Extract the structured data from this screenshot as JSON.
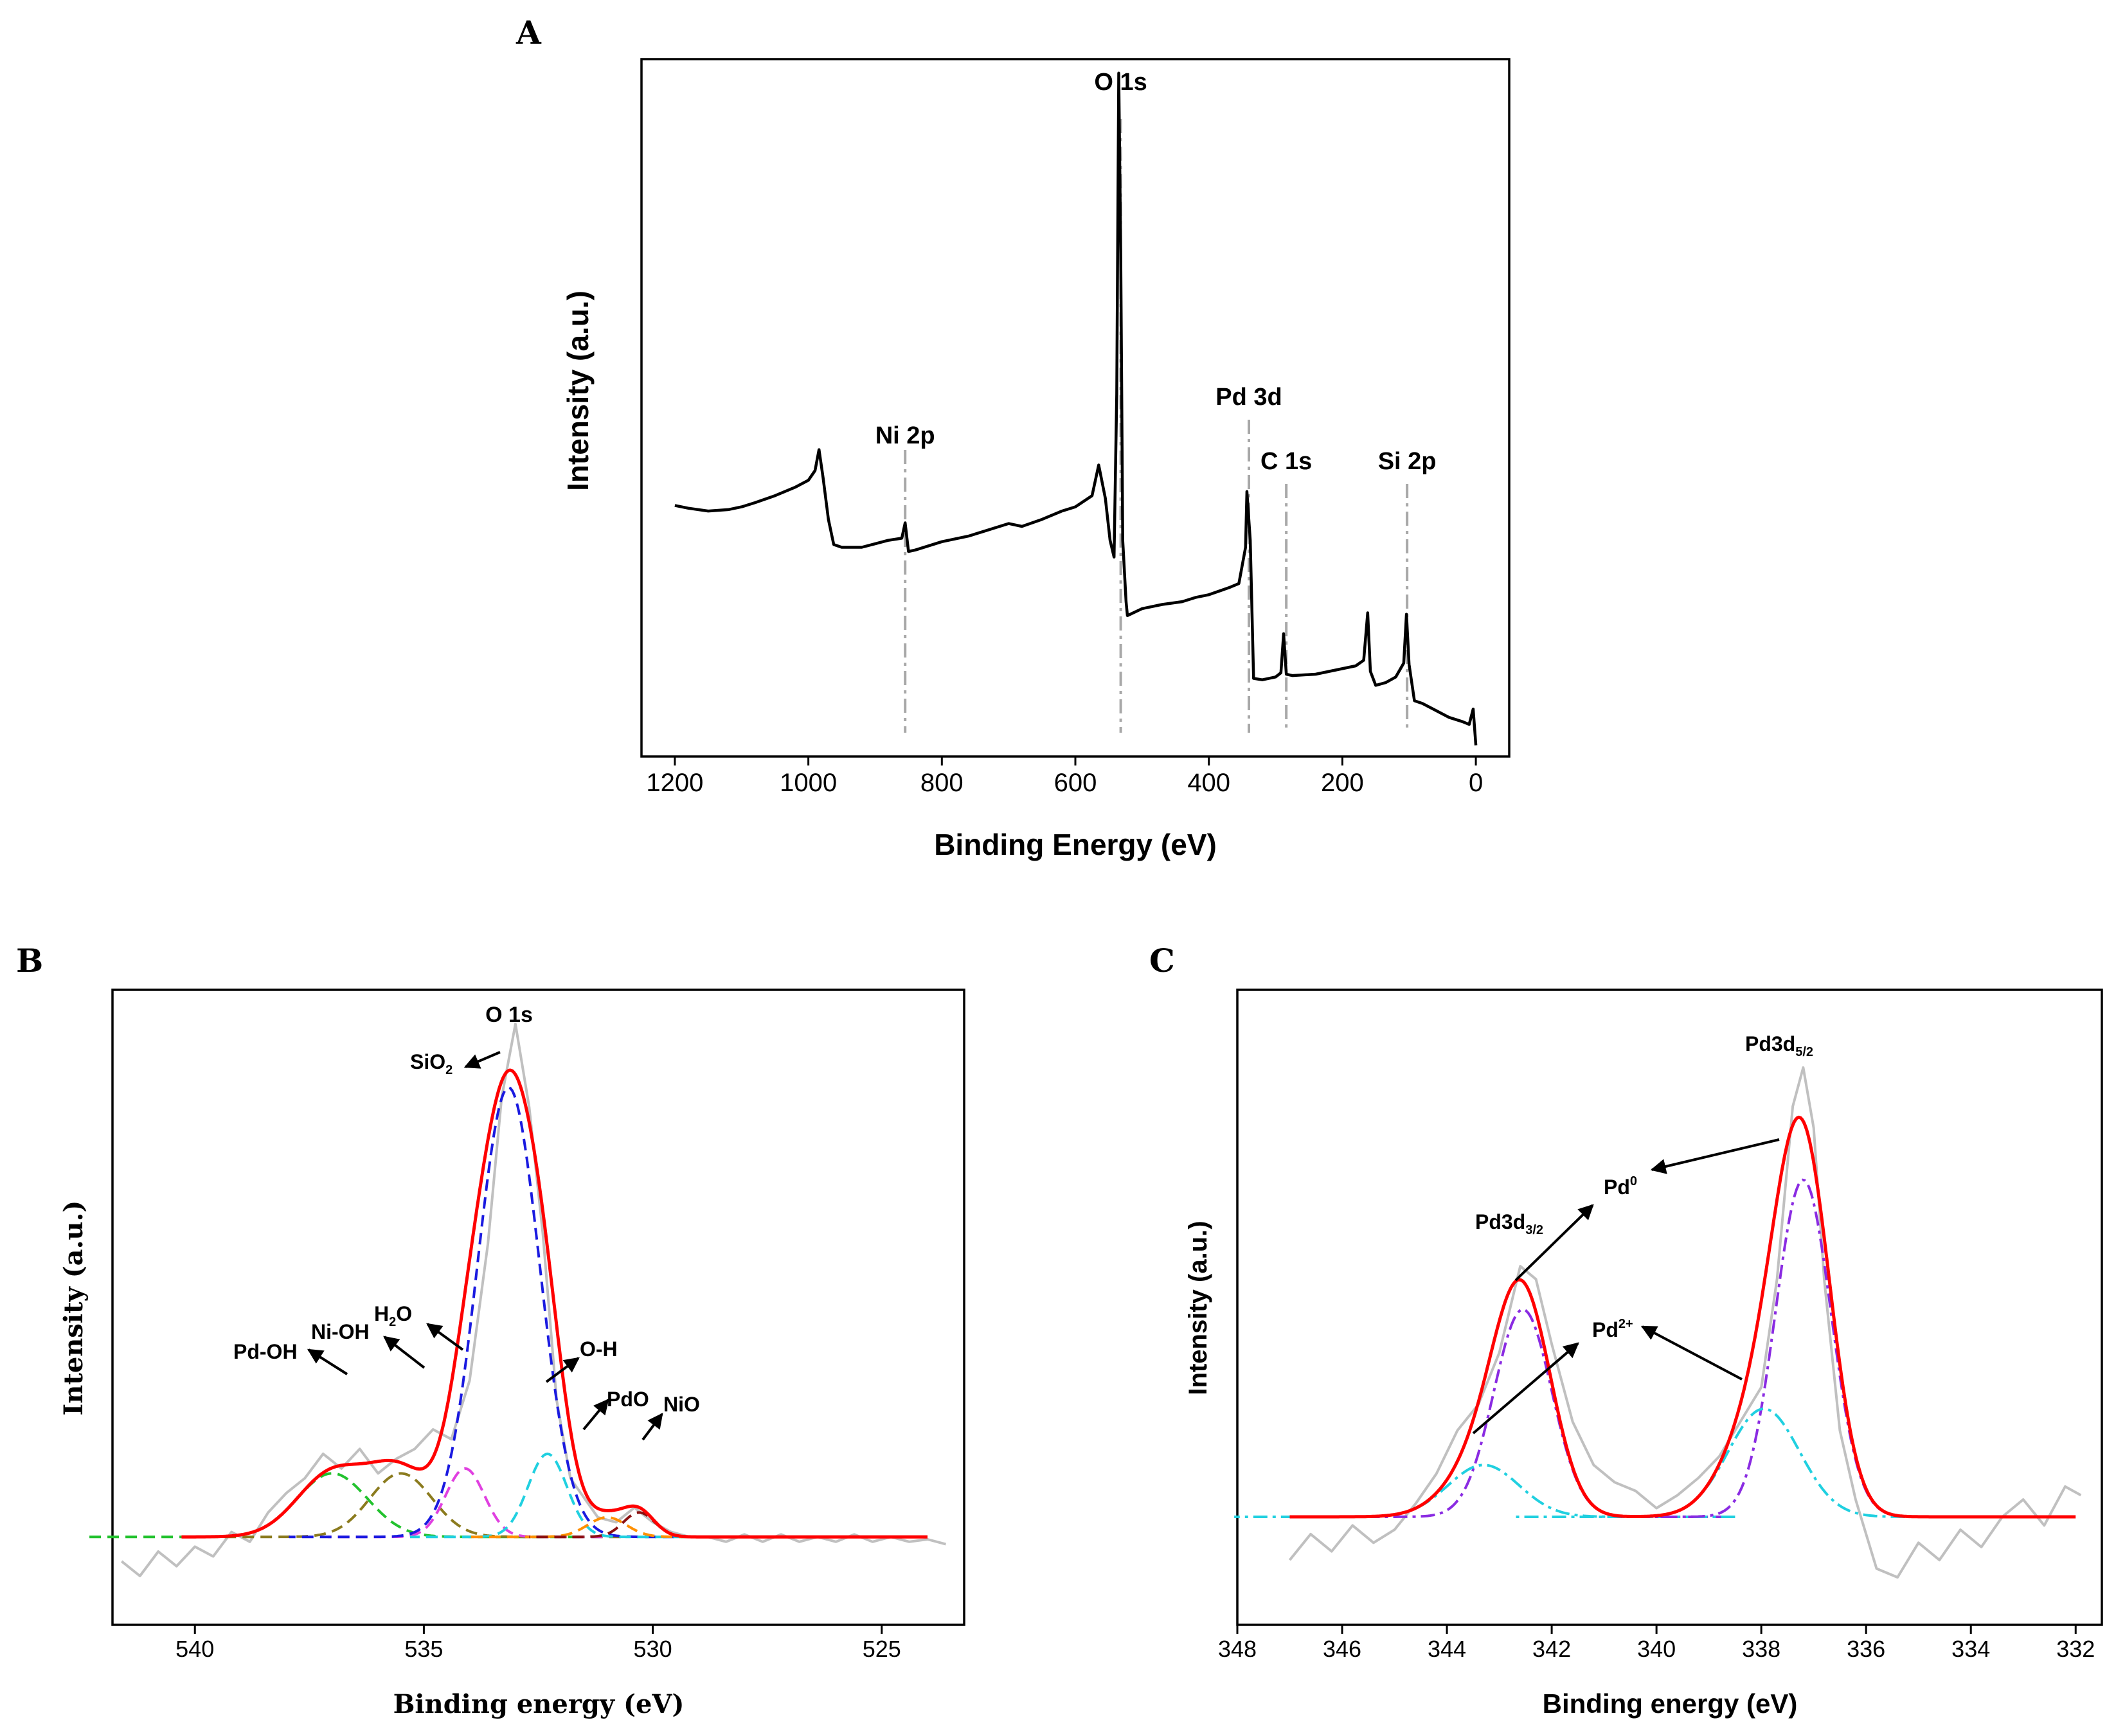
{
  "chart_data": [
    {
      "panel": "A",
      "type": "line",
      "xlabel": "Binding Energy (eV)",
      "ylabel": "Intensity (a.u.)",
      "xlim": [
        1250,
        -50
      ],
      "ylim": [
        0,
        100
      ],
      "xticks": [
        1200,
        1000,
        800,
        600,
        400,
        200,
        0
      ],
      "grid": false,
      "series": [
        {
          "name": "survey spectrum",
          "color": "#000000",
          "points": [
            [
              1200,
              36
            ],
            [
              1180,
              35.6
            ],
            [
              1150,
              35.2
            ],
            [
              1120,
              35.4
            ],
            [
              1100,
              35.8
            ],
            [
              1080,
              36.4
            ],
            [
              1050,
              37.4
            ],
            [
              1020,
              38.6
            ],
            [
              1000,
              39.6
            ],
            [
              990,
              41
            ],
            [
              984,
              44
            ],
            [
              978,
              40
            ],
            [
              970,
              34
            ],
            [
              962,
              30.4
            ],
            [
              950,
              30
            ],
            [
              920,
              30
            ],
            [
              900,
              30.5
            ],
            [
              880,
              31
            ],
            [
              860,
              31.3
            ],
            [
              855,
              33.5
            ],
            [
              850,
              29.4
            ],
            [
              840,
              29.6
            ],
            [
              800,
              30.8
            ],
            [
              760,
              31.6
            ],
            [
              720,
              32.8
            ],
            [
              700,
              33.4
            ],
            [
              680,
              33
            ],
            [
              650,
              34
            ],
            [
              620,
              35.2
            ],
            [
              600,
              35.8
            ],
            [
              575,
              37.4
            ],
            [
              565,
              41.8
            ],
            [
              555,
              37
            ],
            [
              548,
              31
            ],
            [
              542,
              28.6
            ],
            [
              538,
              52
            ],
            [
              535,
              98
            ],
            [
              532,
              72
            ],
            [
              529,
              31
            ],
            [
              524,
              22.2
            ],
            [
              522,
              20.2
            ],
            [
              500,
              21.2
            ],
            [
              470,
              21.8
            ],
            [
              440,
              22.2
            ],
            [
              420,
              22.8
            ],
            [
              400,
              23.2
            ],
            [
              370,
              24.2
            ],
            [
              355,
              24.8
            ],
            [
              345,
              30
            ],
            [
              343,
              38
            ],
            [
              338,
              31
            ],
            [
              333,
              11.2
            ],
            [
              320,
              11
            ],
            [
              300,
              11.4
            ],
            [
              292,
              12
            ],
            [
              288,
              17.6
            ],
            [
              284,
              11.8
            ],
            [
              275,
              11.6
            ],
            [
              240,
              11.8
            ],
            [
              210,
              12.4
            ],
            [
              180,
              13
            ],
            [
              168,
              13.8
            ],
            [
              162,
              20.6
            ],
            [
              158,
              12.2
            ],
            [
              150,
              10.2
            ],
            [
              135,
              10.6
            ],
            [
              120,
              11.4
            ],
            [
              108,
              13.4
            ],
            [
              104,
              20.4
            ],
            [
              100,
              13.2
            ],
            [
              92,
              8
            ],
            [
              80,
              7.6
            ],
            [
              60,
              6.6
            ],
            [
              40,
              5.6
            ],
            [
              20,
              5
            ],
            [
              10,
              4.6
            ],
            [
              4,
              6.8
            ],
            [
              0,
              1.6
            ]
          ]
        }
      ],
      "annotations": [
        {
          "label": "O 1s",
          "x": 532
        },
        {
          "label": "Ni 2p",
          "x": 855
        },
        {
          "label": "Pd 3d",
          "x": 340
        },
        {
          "label": "C 1s",
          "x": 284
        },
        {
          "label": "Si 2p",
          "x": 103
        }
      ]
    },
    {
      "panel": "B",
      "type": "line",
      "xlabel": "Binding energy (eV)",
      "ylabel": "Intensity (a.u.)",
      "xlim": [
        541.8,
        523.2
      ],
      "ylim": [
        -18,
        112
      ],
      "xticks": [
        540,
        535,
        530,
        525
      ],
      "grid": false,
      "raw_color": "#c0c0c0",
      "raw_data": [
        [
          541.6,
          -5
        ],
        [
          541.2,
          -8
        ],
        [
          540.8,
          -3
        ],
        [
          540.4,
          -6
        ],
        [
          540,
          -2
        ],
        [
          539.6,
          -4
        ],
        [
          539.2,
          1
        ],
        [
          538.8,
          -1
        ],
        [
          538.4,
          5
        ],
        [
          538,
          9
        ],
        [
          537.6,
          12
        ],
        [
          537.2,
          17
        ],
        [
          536.8,
          14
        ],
        [
          536.4,
          18
        ],
        [
          536,
          13
        ],
        [
          535.6,
          16
        ],
        [
          535.2,
          18
        ],
        [
          534.8,
          22
        ],
        [
          534.4,
          20
        ],
        [
          534,
          32
        ],
        [
          533.6,
          60
        ],
        [
          533.3,
          90
        ],
        [
          533,
          105
        ],
        [
          532.7,
          88
        ],
        [
          532.4,
          62
        ],
        [
          532.1,
          28
        ],
        [
          531.8,
          12
        ],
        [
          531.5,
          8
        ],
        [
          531.2,
          4
        ],
        [
          530.8,
          3
        ],
        [
          530.4,
          6
        ],
        [
          530,
          3
        ],
        [
          529.6,
          1
        ],
        [
          529.2,
          0
        ],
        [
          528.8,
          0
        ],
        [
          528.4,
          -1
        ],
        [
          528,
          0.5
        ],
        [
          527.6,
          -1
        ],
        [
          527.2,
          0.5
        ],
        [
          526.8,
          -1
        ],
        [
          526.4,
          0
        ],
        [
          526,
          -1
        ],
        [
          525.6,
          0.5
        ],
        [
          525.2,
          -1
        ],
        [
          524.8,
          0
        ],
        [
          524.4,
          -1
        ],
        [
          524,
          -0.5
        ],
        [
          523.6,
          -1.5
        ]
      ],
      "fit_color": "#ff0000",
      "components": [
        {
          "name": "Pd-OH",
          "center": 537.0,
          "amp": 13,
          "fwhm": 1.8,
          "color": "#22c22e"
        },
        {
          "name": "Ni-OH",
          "center": 535.5,
          "amp": 13,
          "fwhm": 1.6,
          "color": "#8b7b1e"
        },
        {
          "name": "H2O",
          "center": 534.1,
          "amp": 14,
          "fwhm": 1.0,
          "color": "#e040e0"
        },
        {
          "name": "SiO2",
          "center": 533.15,
          "amp": 92,
          "fwhm": 1.6,
          "color": "#1a1ae0"
        },
        {
          "name": "O-H",
          "center": 532.3,
          "amp": 17,
          "fwhm": 1.0,
          "color": "#20d0e0"
        },
        {
          "name": "PdO",
          "center": 531.0,
          "amp": 4,
          "fwhm": 1.0,
          "color": "#ff9000"
        },
        {
          "name": "NiO",
          "center": 530.3,
          "amp": 5,
          "fwhm": 0.8,
          "color": "#8b1010"
        }
      ],
      "labels": [
        {
          "text": "O 1s"
        },
        {
          "text": "SiO",
          "sub": "2"
        },
        {
          "text": "Pd-OH"
        },
        {
          "text": "Ni-OH"
        },
        {
          "text": "H",
          "sub": "2",
          "tail": "O"
        },
        {
          "text": "O-H"
        },
        {
          "text": "PdO"
        },
        {
          "text": "NiO"
        }
      ]
    },
    {
      "panel": "C",
      "type": "line",
      "xlabel": "Binding energy (eV)",
      "ylabel": "Intensity (a.u.)",
      "xlim": [
        348,
        331.5
      ],
      "ylim": [
        -25,
        122
      ],
      "xticks": [
        348,
        346,
        344,
        342,
        340,
        338,
        336,
        334,
        332
      ],
      "grid": false,
      "raw_color": "#c0c0c0",
      "raw_data": [
        [
          347,
          -10
        ],
        [
          346.6,
          -4
        ],
        [
          346.2,
          -8
        ],
        [
          345.8,
          -2
        ],
        [
          345.4,
          -6
        ],
        [
          345,
          -3
        ],
        [
          344.6,
          3
        ],
        [
          344.2,
          10
        ],
        [
          343.8,
          20
        ],
        [
          343.4,
          26
        ],
        [
          343,
          38
        ],
        [
          342.6,
          58
        ],
        [
          342.3,
          55
        ],
        [
          342,
          40
        ],
        [
          341.6,
          22
        ],
        [
          341.2,
          12
        ],
        [
          340.8,
          8
        ],
        [
          340.4,
          6
        ],
        [
          340,
          2
        ],
        [
          339.6,
          5
        ],
        [
          339.2,
          9
        ],
        [
          338.8,
          14
        ],
        [
          338.4,
          22
        ],
        [
          338,
          30
        ],
        [
          337.7,
          55
        ],
        [
          337.4,
          95
        ],
        [
          337.2,
          104
        ],
        [
          337,
          90
        ],
        [
          336.8,
          55
        ],
        [
          336.5,
          20
        ],
        [
          336.2,
          4
        ],
        [
          335.8,
          -12
        ],
        [
          335.4,
          -14
        ],
        [
          335,
          -6
        ],
        [
          334.6,
          -10
        ],
        [
          334.2,
          -3
        ],
        [
          333.8,
          -7
        ],
        [
          333.4,
          0
        ],
        [
          333,
          4
        ],
        [
          332.6,
          -2
        ],
        [
          332.2,
          7
        ],
        [
          331.9,
          5
        ]
      ],
      "fit_color": "#ff0000",
      "components": [
        {
          "name": "Pd0 3d3/2",
          "center": 342.55,
          "amp": 48,
          "fwhm": 1.3,
          "color": "#8a2be2"
        },
        {
          "name": "Pd2+ 3d3/2",
          "center": 343.3,
          "amp": 12,
          "fwhm": 1.6,
          "color": "#20d0e0"
        },
        {
          "name": "Pd0 3d5/2",
          "center": 337.2,
          "amp": 78,
          "fwhm": 1.25,
          "color": "#8a2be2"
        },
        {
          "name": "Pd2+ 3d5/2",
          "center": 337.95,
          "amp": 25,
          "fwhm": 1.6,
          "color": "#20d0e0"
        }
      ],
      "labels": [
        {
          "text": "Pd3d",
          "sub": "5/2"
        },
        {
          "text": "Pd3d",
          "sub": "3/2"
        },
        {
          "text": "Pd",
          "sup": "0"
        },
        {
          "text": "Pd",
          "sup": "2+"
        }
      ]
    }
  ],
  "panel_letters": [
    "A",
    "B",
    "C"
  ]
}
